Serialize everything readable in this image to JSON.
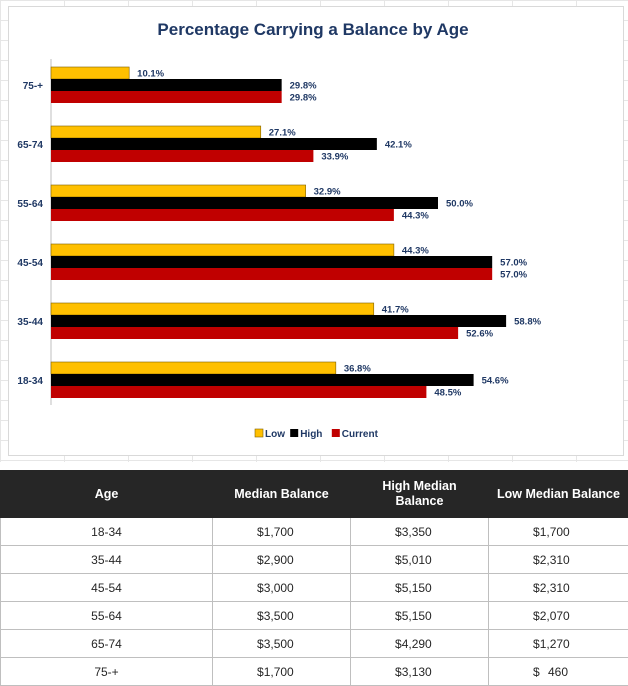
{
  "chart_data": {
    "type": "bar",
    "orientation": "horizontal",
    "title": "Percentage Carrying a Balance by Age",
    "categories": [
      "75-+",
      "65-74",
      "55-64",
      "45-54",
      "35-44",
      "18-34"
    ],
    "series": [
      {
        "name": "Low",
        "color": "#ffc000",
        "values": [
          10.1,
          27.1,
          32.9,
          44.3,
          41.7,
          36.8
        ],
        "labels": [
          "10.1%",
          "27.1%",
          "32.9%",
          "44.3%",
          "41.7%",
          "36.8%"
        ]
      },
      {
        "name": "High",
        "color": "#000000",
        "values": [
          29.8,
          42.1,
          50.0,
          57.0,
          58.8,
          54.6
        ],
        "labels": [
          "29.8%",
          "42.1%",
          "50.0%",
          "57.0%",
          "58.8%",
          "54.6%"
        ]
      },
      {
        "name": "Current",
        "color": "#c00000",
        "values": [
          29.8,
          33.9,
          44.3,
          57.0,
          52.6,
          48.5
        ],
        "labels": [
          "29.8%",
          "33.9%",
          "44.3%",
          "57.0%",
          "52.6%",
          "48.5%"
        ]
      }
    ],
    "xlim": [
      0,
      64
    ],
    "legend_position": "bottom",
    "grid": false
  },
  "table": {
    "headers": [
      "Age",
      "Median Balance",
      "High Median Balance",
      "Low Median Balance"
    ],
    "currency_symbol": "$",
    "rows": [
      {
        "age": "18-34",
        "median": "1,700",
        "high": "3,350",
        "low": "1,700"
      },
      {
        "age": "35-44",
        "median": "2,900",
        "high": "5,010",
        "low": "2,310"
      },
      {
        "age": "45-54",
        "median": "3,000",
        "high": "5,150",
        "low": "2,310"
      },
      {
        "age": "55-64",
        "median": "3,500",
        "high": "5,150",
        "low": "2,070"
      },
      {
        "age": "65-74",
        "median": "3,500",
        "high": "4,290",
        "low": "1,270"
      },
      {
        "age": "75-+",
        "median": "1,700",
        "high": "3,130",
        "low": "460"
      }
    ]
  }
}
